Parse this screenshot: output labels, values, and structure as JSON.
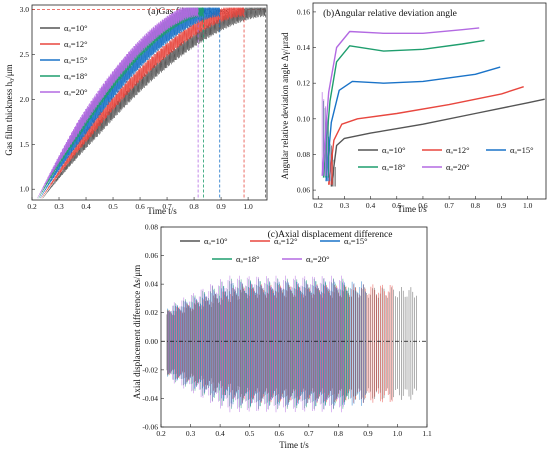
{
  "series_colors": [
    "#555555",
    "#e8473f",
    "#1a73c8",
    "#1f9e6e",
    "#b36ae2"
  ],
  "chart_data": [
    {
      "type": "line",
      "title": "(a)Gas film thickness",
      "xlabel": "Time t/s",
      "ylabel": "Gas film thickness h₀/μm",
      "xlim": [
        0.2,
        1.07
      ],
      "ylim": [
        0.88,
        3.05
      ],
      "xticks": [
        "0.2",
        "0.3",
        "0.4",
        "0.5",
        "0.6",
        "0.7",
        "0.8",
        "0.9",
        "1.0"
      ],
      "yticks": [
        "1.0",
        "1.5",
        "2.0",
        "2.5",
        "3.0"
      ],
      "reference_line": {
        "y": 3.0
      },
      "legend_position": "top-left",
      "series": [
        {
          "name": "αₐ=10°",
          "t_end": 1.065,
          "t_start": 0.24
        },
        {
          "name": "αₐ=12°",
          "t_end": 0.985,
          "t_start": 0.235
        },
        {
          "name": "αₐ=15°",
          "t_end": 0.895,
          "t_start": 0.23
        },
        {
          "name": "αₐ=18°",
          "t_end": 0.835,
          "t_start": 0.225
        },
        {
          "name": "αₐ=20°",
          "t_end": 0.815,
          "t_start": 0.22
        }
      ]
    },
    {
      "type": "line",
      "title": "(b)Angular relative deviation angle",
      "xlabel": "Time t/s",
      "ylabel": "Angular relative deviation angle Δγ/μrad",
      "xlim": [
        0.18,
        1.07
      ],
      "ylim": [
        0.055,
        0.165
      ],
      "xticks": [
        "0.2",
        "0.3",
        "0.4",
        "0.5",
        "0.6",
        "0.7",
        "0.8",
        "0.9",
        "1.0"
      ],
      "yticks": [
        "0.06",
        "0.08",
        "0.10",
        "0.12",
        "0.14",
        "0.16"
      ],
      "legend_position": "lower-right",
      "series": [
        {
          "name": "αₐ=10°",
          "points": [
            [
              0.25,
              0.062
            ],
            [
              0.27,
              0.085
            ],
            [
              0.3,
              0.089
            ],
            [
              0.4,
              0.092
            ],
            [
              0.6,
              0.097
            ],
            [
              0.8,
              0.103
            ],
            [
              1.0,
              0.109
            ],
            [
              1.065,
              0.111
            ]
          ]
        },
        {
          "name": "αₐ=12°",
          "points": [
            [
              0.24,
              0.063
            ],
            [
              0.26,
              0.088
            ],
            [
              0.29,
              0.097
            ],
            [
              0.35,
              0.1
            ],
            [
              0.5,
              0.103
            ],
            [
              0.7,
              0.108
            ],
            [
              0.9,
              0.114
            ],
            [
              0.985,
              0.118
            ]
          ]
        },
        {
          "name": "αₐ=15°",
          "points": [
            [
              0.23,
              0.065
            ],
            [
              0.25,
              0.098
            ],
            [
              0.28,
              0.116
            ],
            [
              0.33,
              0.121
            ],
            [
              0.45,
              0.12
            ],
            [
              0.6,
              0.121
            ],
            [
              0.8,
              0.125
            ],
            [
              0.895,
              0.129
            ]
          ]
        },
        {
          "name": "αₐ=18°",
          "points": [
            [
              0.22,
              0.067
            ],
            [
              0.245,
              0.11
            ],
            [
              0.27,
              0.132
            ],
            [
              0.32,
              0.141
            ],
            [
              0.45,
              0.138
            ],
            [
              0.6,
              0.139
            ],
            [
              0.75,
              0.142
            ],
            [
              0.835,
              0.144
            ]
          ]
        },
        {
          "name": "αₐ=20°",
          "points": [
            [
              0.215,
              0.068
            ],
            [
              0.24,
              0.115
            ],
            [
              0.27,
              0.14
            ],
            [
              0.32,
              0.149
            ],
            [
              0.45,
              0.148
            ],
            [
              0.6,
              0.148
            ],
            [
              0.75,
              0.15
            ],
            [
              0.815,
              0.151
            ]
          ]
        }
      ]
    },
    {
      "type": "line",
      "title": "(c)Axial displacement difference",
      "xlabel": "Time t/s",
      "ylabel": "Axial displacement difference Δs/μm",
      "xlim": [
        0.2,
        1.1
      ],
      "ylim": [
        -0.06,
        0.08
      ],
      "xticks": [
        "0.2",
        "0.3",
        "0.4",
        "0.5",
        "0.6",
        "0.7",
        "0.8",
        "0.9",
        "1.0",
        "1.1"
      ],
      "yticks": [
        "-0.06",
        "-0.04",
        "-0.02",
        "0.00",
        "0.02",
        "0.04",
        "0.06",
        "0.08"
      ],
      "reference_line": {
        "y": 0.0
      },
      "legend_position": "top",
      "series": [
        {
          "name": "αₐ=10°",
          "t_end": 1.065,
          "amplitude": 0.038
        },
        {
          "name": "αₐ=12°",
          "t_end": 0.985,
          "amplitude": 0.04
        },
        {
          "name": "αₐ=15°",
          "t_end": 0.895,
          "amplitude": 0.042
        },
        {
          "name": "αₐ=18°",
          "t_end": 0.835,
          "amplitude": 0.044
        },
        {
          "name": "αₐ=20°",
          "t_end": 0.815,
          "amplitude": 0.046
        }
      ]
    }
  ]
}
